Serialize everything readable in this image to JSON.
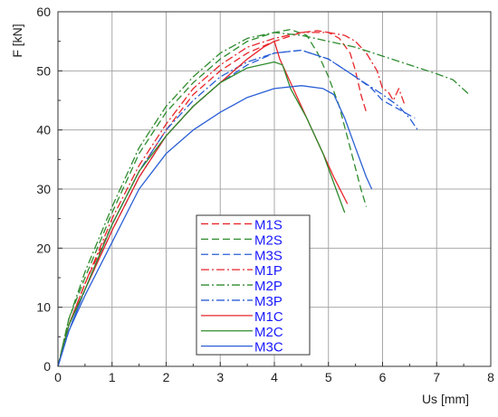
{
  "chart_data": {
    "type": "line",
    "title": "",
    "xlabel": "Us [mm]",
    "ylabel": "F [kN]",
    "xlim": [
      0,
      8
    ],
    "ylim": [
      0,
      60
    ],
    "xticks": [
      "0",
      "1",
      "2",
      "3",
      "4",
      "5",
      "6",
      "7",
      "8"
    ],
    "yticks": [
      "0",
      "10",
      "20",
      "30",
      "40",
      "50",
      "60"
    ],
    "grid": true,
    "legend_position": "center",
    "series": [
      {
        "name": "M1S",
        "color": "#e8262b",
        "dash": "dashed",
        "x": [
          0,
          0.2,
          0.5,
          1.0,
          1.5,
          2.0,
          2.5,
          3.0,
          3.5,
          4.0,
          4.5,
          4.8,
          5.0,
          5.2,
          5.4,
          5.5,
          5.6,
          5.7
        ],
        "y": [
          0,
          7,
          14,
          24,
          33,
          40,
          46,
          50,
          53,
          55,
          56.5,
          56.8,
          56.5,
          55.5,
          53,
          50,
          46,
          43
        ]
      },
      {
        "name": "M2S",
        "color": "#2e8b2e",
        "dash": "dashed",
        "x": [
          0,
          0.2,
          0.5,
          1.0,
          1.5,
          2.0,
          2.5,
          3.0,
          3.5,
          4.0,
          4.3,
          4.6,
          4.8,
          5.0,
          5.2,
          5.4,
          5.6,
          5.7
        ],
        "y": [
          0,
          8,
          15,
          26,
          36,
          43,
          48,
          52,
          55,
          56.5,
          57,
          56,
          53,
          49,
          44,
          37,
          30,
          27
        ]
      },
      {
        "name": "M3S",
        "color": "#2a5fd6",
        "dash": "dashed",
        "x": [
          0,
          0.2,
          0.5,
          1.0,
          1.5,
          2.0,
          2.5,
          3.0,
          3.5,
          4.0,
          4.5,
          5.0,
          5.5,
          5.8,
          6.0,
          6.2,
          6.4,
          6.6
        ],
        "y": [
          0,
          6,
          13,
          23,
          32,
          39,
          44,
          48,
          51,
          53,
          53.5,
          52,
          49,
          47,
          45,
          44,
          43,
          42
        ]
      },
      {
        "name": "M1P",
        "color": "#e8262b",
        "dash": "dashdot",
        "x": [
          0,
          0.2,
          0.5,
          1.0,
          1.5,
          2.0,
          2.5,
          3.0,
          3.5,
          4.0,
          4.5,
          5.0,
          5.3,
          5.5,
          5.7,
          5.9,
          6.0,
          6.1,
          6.2,
          6.3,
          6.4
        ],
        "y": [
          0,
          7,
          14,
          25,
          34,
          41,
          47,
          51,
          54,
          55.5,
          56.5,
          56.5,
          56,
          55,
          53,
          50,
          47,
          46.5,
          45,
          47,
          44.5
        ]
      },
      {
        "name": "M2P",
        "color": "#2e8b2e",
        "dash": "dashdot",
        "x": [
          0,
          0.2,
          0.5,
          1.0,
          1.5,
          2.0,
          2.5,
          3.0,
          3.5,
          4.0,
          4.5,
          5.0,
          5.5,
          6.0,
          6.5,
          7.0,
          7.3,
          7.6
        ],
        "y": [
          0,
          8,
          16,
          27,
          37,
          44,
          49,
          53,
          55.5,
          56.5,
          56,
          55,
          54,
          52.5,
          51,
          49.5,
          48.5,
          46
        ]
      },
      {
        "name": "M3P",
        "color": "#2a5fd6",
        "dash": "dashdot",
        "x": [
          0,
          0.2,
          0.5,
          1.0,
          1.5,
          2.0,
          2.5,
          3.0,
          3.5,
          4.0,
          4.5,
          5.0,
          5.5,
          6.0,
          6.3,
          6.5,
          6.65
        ],
        "y": [
          0,
          6,
          13,
          24,
          33,
          40,
          45,
          49,
          51.5,
          53,
          53.5,
          52,
          49,
          46,
          44,
          42,
          40
        ]
      },
      {
        "name": "M1C",
        "color": "#e8262b",
        "dash": "solid",
        "x": [
          0,
          0.2,
          0.5,
          1.0,
          1.5,
          2.0,
          2.5,
          3.0,
          3.5,
          3.8,
          4.0,
          4.1,
          4.3,
          4.6,
          4.9,
          5.1,
          5.35
        ],
        "y": [
          0,
          7,
          13,
          23,
          32,
          39,
          44,
          48,
          52,
          54,
          55,
          52,
          48,
          42,
          36,
          32,
          27.5
        ]
      },
      {
        "name": "M2C",
        "color": "#2e8b2e",
        "dash": "solid",
        "x": [
          0,
          0.2,
          0.5,
          1.0,
          1.5,
          2.0,
          2.5,
          3.0,
          3.5,
          4.0,
          4.15,
          4.3,
          4.6,
          4.9,
          5.1,
          5.3
        ],
        "y": [
          0,
          7,
          13,
          24,
          33,
          39,
          44,
          48,
          50.5,
          51.5,
          51,
          47,
          42,
          36,
          31,
          26
        ]
      },
      {
        "name": "M3C",
        "color": "#2a5fd6",
        "dash": "solid",
        "x": [
          0,
          0.2,
          0.5,
          1.0,
          1.5,
          2.0,
          2.5,
          3.0,
          3.5,
          4.0,
          4.5,
          4.9,
          5.1,
          5.3,
          5.5,
          5.7,
          5.8
        ],
        "y": [
          0,
          6,
          12,
          21,
          30,
          36,
          40,
          43,
          45.5,
          47,
          47.5,
          47,
          46,
          42,
          37,
          32,
          30
        ]
      }
    ]
  }
}
